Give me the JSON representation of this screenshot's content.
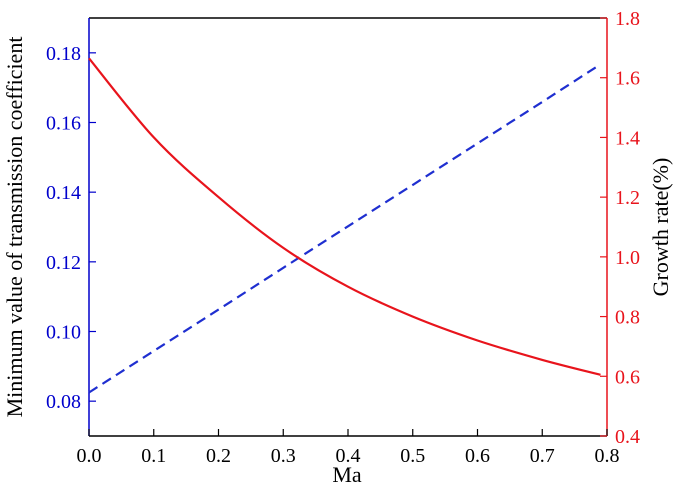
{
  "chart_data": {
    "type": "line",
    "xlabel": "Ma",
    "ylabel_left": "Minimum value of transmission coefficient",
    "ylabel_right": "Growth rate(%)",
    "xlim": [
      0.0,
      0.8
    ],
    "ylim_left": [
      0.07,
      0.19
    ],
    "ylim_right": [
      0.4,
      1.8
    ],
    "x_ticks": [
      "0.0",
      "0.1",
      "0.2",
      "0.3",
      "0.4",
      "0.5",
      "0.6",
      "0.7",
      "0.8"
    ],
    "y_left_ticks": [
      "0.08",
      "0.10",
      "0.12",
      "0.14",
      "0.16",
      "0.18"
    ],
    "y_right_ticks": [
      "0.4",
      "0.6",
      "0.8",
      "1.0",
      "1.2",
      "1.4",
      "1.6",
      "1.8"
    ],
    "grid": false,
    "colors": {
      "left_axis": "#0000cc",
      "right_axis": "#e8141c",
      "frame": "#000000"
    },
    "series": [
      {
        "axis": "left",
        "style": "dashed",
        "color": "#1f2fd0",
        "x": [
          0.0,
          0.1,
          0.2,
          0.3,
          0.4,
          0.5,
          0.6,
          0.7,
          0.79
        ],
        "values": [
          0.0825,
          0.0944,
          0.1063,
          0.1183,
          0.1302,
          0.1421,
          0.154,
          0.1659,
          0.1767
        ]
      },
      {
        "axis": "right",
        "style": "solid",
        "color": "#e8141c",
        "x": [
          0.0,
          0.1,
          0.2,
          0.3,
          0.4,
          0.5,
          0.6,
          0.7,
          0.79
        ],
        "values": [
          1.665,
          1.4,
          1.2,
          1.03,
          0.9,
          0.8,
          0.72,
          0.655,
          0.605
        ]
      }
    ]
  }
}
